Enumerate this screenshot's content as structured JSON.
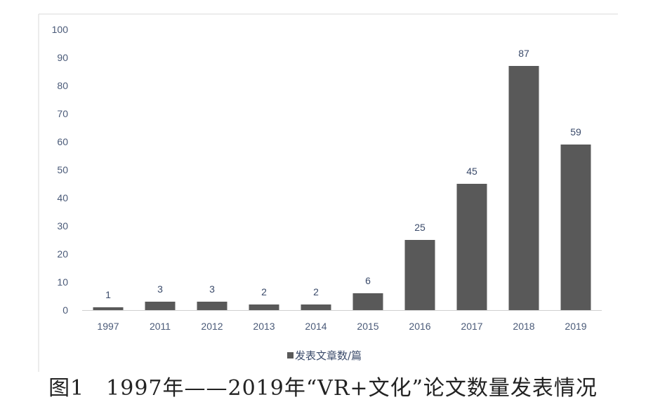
{
  "chart_data": {
    "type": "bar",
    "categories": [
      "1997",
      "2011",
      "2012",
      "2013",
      "2014",
      "2015",
      "2016",
      "2017",
      "2018",
      "2019"
    ],
    "series": [
      {
        "name": "发表文章数/篇",
        "values": [
          1,
          3,
          3,
          2,
          2,
          6,
          25,
          45,
          87,
          59
        ],
        "color": "#595959"
      }
    ],
    "ylim": [
      0,
      100
    ],
    "yticks": [
      0,
      10,
      20,
      30,
      40,
      50,
      60,
      70,
      80,
      90,
      100
    ],
    "grid": false,
    "legend": "bottom",
    "data_labels": true
  },
  "caption": "图1　1997年——2019年“VR+文化”论文数量发表情况"
}
